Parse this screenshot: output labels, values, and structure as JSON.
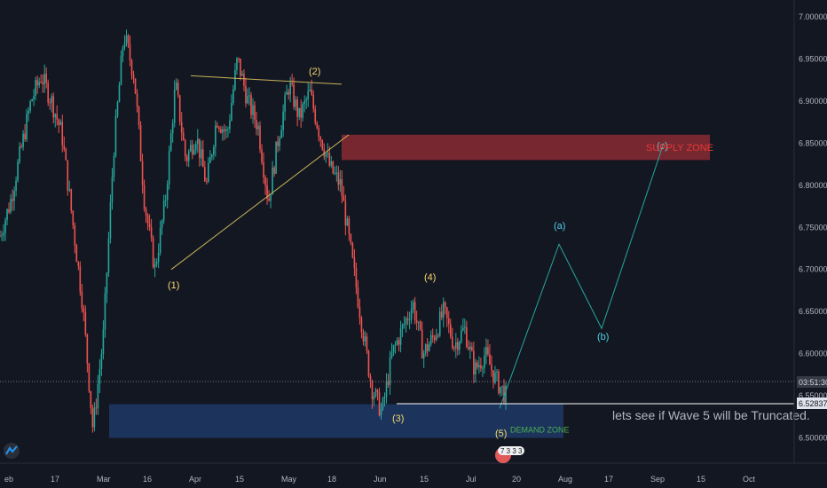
{
  "colors": {
    "background": "#131722",
    "candle_up": "#26a69a",
    "candle_down": "#ef5350",
    "supply": "#8a2a33",
    "demand": "#1e3a66",
    "projection": "#26a69a",
    "triangle": "#c9b458"
  },
  "note": "lets see if Wave 5 will be Truncated.",
  "current_price_label": "03:51:30",
  "marker_price_label": "6.52837",
  "event_badge": "7 3 3 3",
  "chart_data": {
    "type": "candlestick",
    "ylim": [
      6.47,
      7.02
    ],
    "y_ticks": [
      "7.00000",
      "6.95000",
      "6.90000",
      "6.85000",
      "6.80000",
      "6.75000",
      "6.70000",
      "6.65000",
      "6.60000",
      "6.55000",
      "6.50000"
    ],
    "x_ticks": [
      "eb",
      "17",
      "Mar",
      "16",
      "Apr",
      "15",
      "May",
      "18",
      "Jun",
      "15",
      "Jul",
      "20",
      "Aug",
      "17",
      "Sep",
      "15",
      "Oct"
    ],
    "price_path": [
      [
        0,
        6.74
      ],
      [
        1,
        6.78
      ],
      [
        2,
        6.84
      ],
      [
        3,
        6.9
      ],
      [
        4,
        6.93
      ],
      [
        5,
        6.9
      ],
      [
        6,
        6.86
      ],
      [
        7,
        6.76
      ],
      [
        8,
        6.66
      ],
      [
        9,
        6.51
      ],
      [
        10,
        6.62
      ],
      [
        11,
        6.84
      ],
      [
        12,
        6.98
      ],
      [
        13,
        6.93
      ],
      [
        14,
        6.78
      ],
      [
        15,
        6.7
      ],
      [
        16,
        6.78
      ],
      [
        17,
        6.92
      ],
      [
        18,
        6.83
      ],
      [
        19,
        6.86
      ],
      [
        20,
        6.8
      ],
      [
        21,
        6.88
      ],
      [
        22,
        6.86
      ],
      [
        23,
        6.95
      ],
      [
        24,
        6.9
      ],
      [
        25,
        6.87
      ],
      [
        26,
        6.78
      ],
      [
        27,
        6.86
      ],
      [
        28,
        6.92
      ],
      [
        29,
        6.88
      ],
      [
        30,
        6.91
      ],
      [
        31,
        6.86
      ],
      [
        32,
        6.82
      ],
      [
        33,
        6.8
      ],
      [
        34,
        6.72
      ],
      [
        35,
        6.64
      ],
      [
        36,
        6.56
      ],
      [
        37,
        6.53
      ],
      [
        38,
        6.6
      ],
      [
        39,
        6.63
      ],
      [
        40,
        6.66
      ],
      [
        41,
        6.6
      ],
      [
        42,
        6.62
      ],
      [
        43,
        6.65
      ],
      [
        44,
        6.61
      ],
      [
        45,
        6.63
      ],
      [
        46,
        6.58
      ],
      [
        47,
        6.6
      ],
      [
        48,
        6.57
      ],
      [
        49,
        6.55
      ]
    ],
    "supply_zone": {
      "label": "SUPPLY ZONE",
      "y_low": 6.83,
      "y_high": 6.86
    },
    "demand_zone": {
      "label": "DEMAND ZONE",
      "y_low": 6.5,
      "y_high": 6.54
    },
    "wave_labels": [
      {
        "text": "(1)",
        "x": 14.5,
        "y": 6.69
      },
      {
        "text": "(2)",
        "x": 27.5,
        "y": 6.95
      },
      {
        "text": "(3)",
        "x": 35.5,
        "y": 6.52
      },
      {
        "text": "(4)",
        "x": 40,
        "y": 6.68
      },
      {
        "text": "(5)",
        "x": 46,
        "y": 6.5
      }
    ],
    "projection_labels": [
      {
        "text": "(a)",
        "x": 52,
        "y": 6.74
      },
      {
        "text": "(b)",
        "x": 56,
        "y": 6.62
      },
      {
        "text": "(c)",
        "x": 60,
        "y": 6.845
      }
    ]
  }
}
